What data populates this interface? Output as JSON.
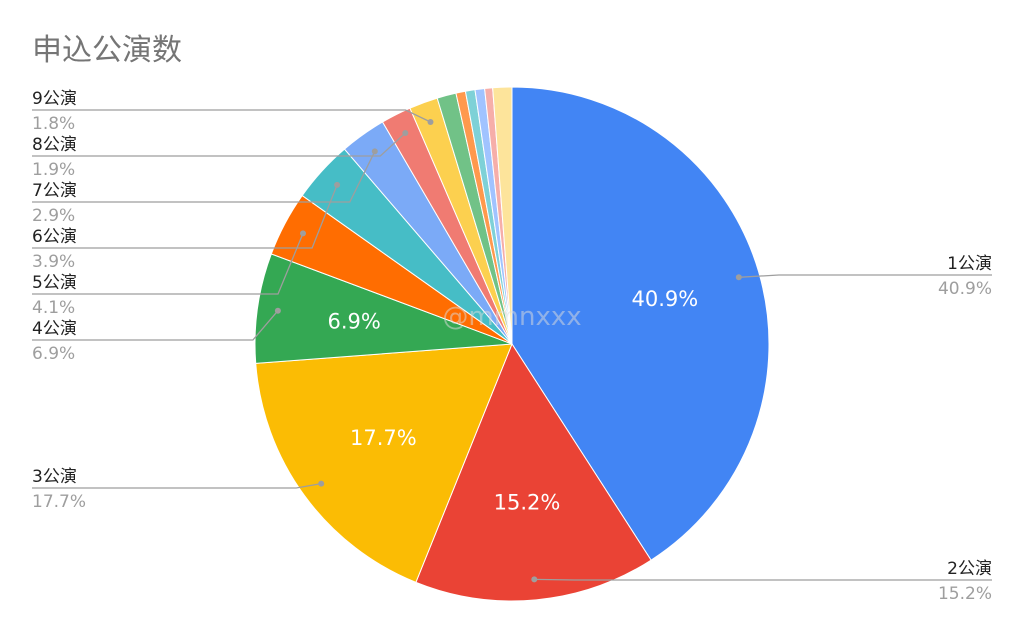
{
  "chart_data": {
    "type": "pie",
    "title": "申込公演数",
    "watermark": "@mmnxxx",
    "slices": [
      {
        "label": "1公演",
        "value": 40.9,
        "pct": "40.9%",
        "color": "#4285F4",
        "inner": "40.9%"
      },
      {
        "label": "2公演",
        "value": 15.2,
        "pct": "15.2%",
        "color": "#EA4335",
        "inner": "15.2%"
      },
      {
        "label": "3公演",
        "value": 17.7,
        "pct": "17.7%",
        "color": "#FBBC04",
        "inner": "17.7%"
      },
      {
        "label": "4公演",
        "value": 6.9,
        "pct": "6.9%",
        "color": "#34A853",
        "inner": "6.9%"
      },
      {
        "label": "5公演",
        "value": 4.1,
        "pct": "4.1%",
        "color": "#FF6D01"
      },
      {
        "label": "6公演",
        "value": 3.9,
        "pct": "3.9%",
        "color": "#46BDC6"
      },
      {
        "label": "7公演",
        "value": 2.9,
        "pct": "2.9%",
        "color": "#7BAAF7"
      },
      {
        "label": "8公演",
        "value": 1.9,
        "pct": "1.9%",
        "color": "#F07B72"
      },
      {
        "label": "9公演",
        "value": 1.8,
        "pct": "1.8%",
        "color": "#FCD04F"
      },
      {
        "value": 1.2,
        "color": "#71C287"
      },
      {
        "value": 0.6,
        "color": "#FF994D"
      },
      {
        "value": 0.6,
        "color": "#7ED1D7"
      },
      {
        "value": 0.6,
        "color": "#A0C3FF"
      },
      {
        "value": 0.5,
        "color": "#F6AEA9"
      },
      {
        "value": 1.2,
        "color": "#FDE49B"
      }
    ]
  }
}
